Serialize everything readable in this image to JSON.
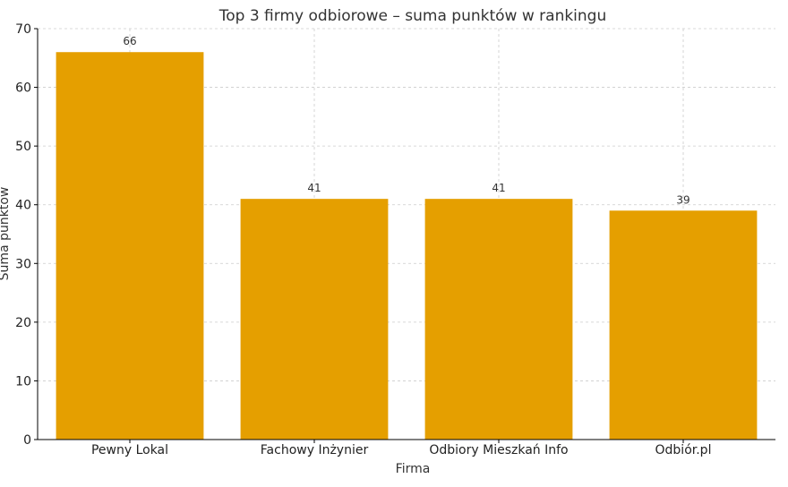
{
  "chart_data": {
    "type": "bar",
    "title": "Top 3 firmy odbiorowe – suma punktów w rankingu",
    "xlabel": "Firma",
    "ylabel": "Suma punktów",
    "categories": [
      "Pewny Lokal",
      "Fachowy Inżynier",
      "Odbiory Mieszkań Info",
      "Odbiór.pl"
    ],
    "values": [
      66,
      41,
      41,
      39
    ],
    "data_labels": [
      "66",
      "41",
      "41",
      "39"
    ],
    "ylim": [
      0,
      70
    ],
    "yticks": [
      0,
      10,
      20,
      30,
      40,
      50,
      60,
      70
    ],
    "grid": true,
    "bar_color": "#E59F00"
  }
}
